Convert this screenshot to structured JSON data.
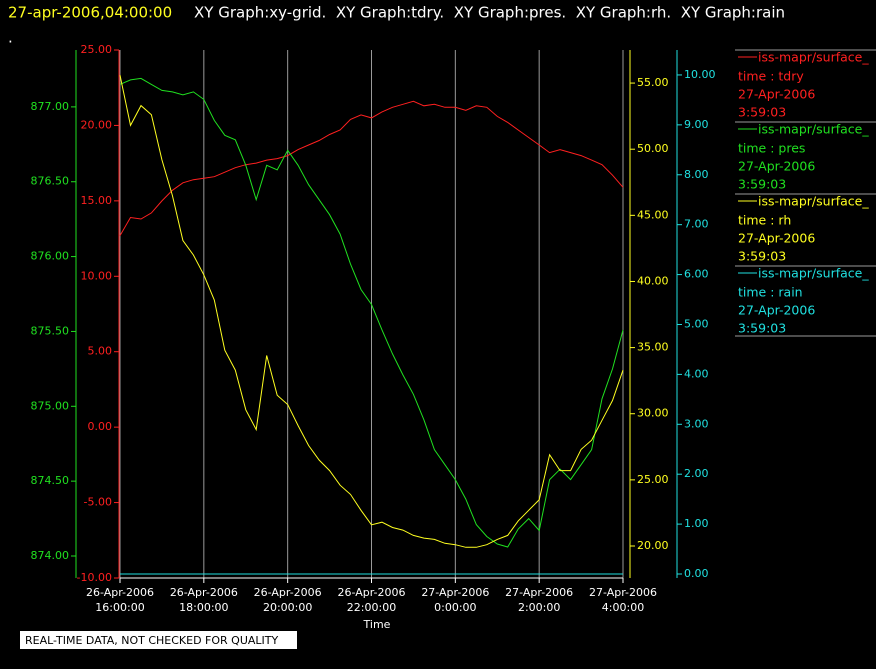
{
  "chart_data": {
    "type": "line",
    "title": "27-apr-2006,04:00:00",
    "subtitle": "XY Graph:xy-grid.  XY Graph:tdry.  XY Graph:pres.  XY Graph:rh.  XY Graph:rain",
    "marker": ".",
    "x_label": "Time",
    "footer": "REAL-TIME DATA, NOT CHECKED FOR QUALITY",
    "grid": true,
    "xlim": [
      0,
      12
    ],
    "xticks": [
      {
        "value": 0,
        "label": [
          "26-Apr-2006",
          "16:00:00"
        ]
      },
      {
        "value": 2,
        "label": [
          "26-Apr-2006",
          "18:00:00"
        ]
      },
      {
        "value": 4,
        "label": [
          "26-Apr-2006",
          "20:00:00"
        ]
      },
      {
        "value": 6,
        "label": [
          "26-Apr-2006",
          "22:00:00"
        ]
      },
      {
        "value": 8,
        "label": [
          "27-Apr-2006",
          "0:00:00"
        ]
      },
      {
        "value": 10,
        "label": [
          "27-Apr-2006",
          "2:00:00"
        ]
      },
      {
        "value": 12,
        "label": [
          "27-Apr-2006",
          "4:00:00"
        ]
      }
    ],
    "y_axes": [
      {
        "color": "#ff2020",
        "lim": [
          -10,
          25
        ],
        "ticks": [
          {
            "value": -10,
            "label": "-10.00"
          },
          {
            "value": -5,
            "label": "-5.00"
          },
          {
            "value": 0,
            "label": "0.00"
          },
          {
            "value": 5,
            "label": "5.00"
          },
          {
            "value": 10,
            "label": "10.00"
          },
          {
            "value": 15,
            "label": "15.00"
          },
          {
            "value": 20,
            "label": "20.00"
          },
          {
            "value": 25,
            "label": "25.00"
          }
        ]
      },
      {
        "color": "#20e020",
        "lim": [
          873.853,
          877.38
        ],
        "ticks": [
          {
            "value": 874,
            "label": "874.00"
          },
          {
            "value": 874.5,
            "label": "874.50"
          },
          {
            "value": 875,
            "label": "875.00"
          },
          {
            "value": 875.5,
            "label": "875.50"
          },
          {
            "value": 876,
            "label": "876.00"
          },
          {
            "value": 876.5,
            "label": "876.50"
          },
          {
            "value": 877,
            "label": "877.00"
          }
        ]
      },
      {
        "color": "#ffff20",
        "lim": [
          17.58,
          57.5
        ],
        "ticks": [
          {
            "value": 20,
            "label": "20.00"
          },
          {
            "value": 25,
            "label": "25.00"
          },
          {
            "value": 30,
            "label": "30.00"
          },
          {
            "value": 35,
            "label": "35.00"
          },
          {
            "value": 40,
            "label": "40.00"
          },
          {
            "value": 45,
            "label": "45.00"
          },
          {
            "value": 50,
            "label": "50.00"
          },
          {
            "value": 55,
            "label": "55.00"
          }
        ]
      },
      {
        "color": "#20e0e0",
        "lim": [
          -0.08,
          10.5
        ],
        "ticks": [
          {
            "value": 0,
            "label": "0.00"
          },
          {
            "value": 1,
            "label": "1.00"
          },
          {
            "value": 2,
            "label": "2.00"
          },
          {
            "value": 3,
            "label": "3.00"
          },
          {
            "value": 4,
            "label": "4.00"
          },
          {
            "value": 5,
            "label": "5.00"
          },
          {
            "value": 6,
            "label": "6.00"
          },
          {
            "value": 7,
            "label": "7.00"
          },
          {
            "value": 8,
            "label": "8.00"
          },
          {
            "value": 9,
            "label": "9.00"
          },
          {
            "value": 10,
            "label": "10.00"
          }
        ]
      }
    ],
    "x": [
      0,
      0.25,
      0.5,
      0.75,
      1,
      1.25,
      1.5,
      1.75,
      2,
      2.25,
      2.5,
      2.75,
      3,
      3.25,
      3.5,
      3.75,
      4,
      4.25,
      4.5,
      4.75,
      5,
      5.25,
      5.5,
      5.75,
      6,
      6.25,
      6.5,
      6.75,
      7,
      7.25,
      7.5,
      7.75,
      8,
      8.25,
      8.5,
      8.75,
      9,
      9.25,
      9.5,
      9.75,
      10,
      10.25,
      10.5,
      10.75,
      11,
      11.25,
      11.5,
      11.75,
      12
    ],
    "series": [
      {
        "name": "iss-mapr/surface_",
        "label": "time : tdry",
        "date": "27-Apr-2006",
        "time": "3:59:03",
        "color": "#ff2020",
        "axis": 0,
        "values": [
          12.7,
          13.9,
          13.8,
          14.2,
          15.0,
          15.7,
          16.2,
          16.4,
          16.5,
          16.6,
          16.9,
          17.2,
          17.4,
          17.5,
          17.7,
          17.8,
          18.0,
          18.4,
          18.7,
          19.0,
          19.4,
          19.7,
          20.4,
          20.7,
          20.5,
          20.9,
          21.2,
          21.4,
          21.6,
          21.3,
          21.4,
          21.2,
          21.2,
          21.0,
          21.3,
          21.2,
          20.6,
          20.2,
          19.7,
          19.2,
          18.7,
          18.2,
          18.4,
          18.2,
          18.0,
          17.7,
          17.4,
          16.7,
          15.9
        ]
      },
      {
        "name": "iss-mapr/surface_",
        "label": "time : pres",
        "date": "27-Apr-2006",
        "time": "3:59:03",
        "color": "#20e020",
        "axis": 1,
        "values": [
          877.15,
          877.18,
          877.19,
          877.15,
          877.11,
          877.1,
          877.08,
          877.1,
          877.05,
          876.91,
          876.81,
          876.78,
          876.61,
          876.38,
          876.61,
          876.58,
          876.71,
          876.61,
          876.48,
          876.38,
          876.28,
          876.15,
          875.95,
          875.78,
          875.68,
          875.51,
          875.35,
          875.21,
          875.08,
          874.91,
          874.71,
          874.61,
          874.51,
          874.38,
          874.21,
          874.13,
          874.08,
          874.06,
          874.18,
          874.25,
          874.17,
          874.51,
          874.58,
          874.51,
          874.61,
          874.71,
          875.05,
          875.25,
          875.51
        ]
      },
      {
        "name": "iss-mapr/surface_",
        "label": "time : rh",
        "date": "27-Apr-2006",
        "time": "3:59:03",
        "color": "#ffff20",
        "axis": 2,
        "values": [
          55.6,
          51.8,
          53.3,
          52.6,
          49.2,
          46.5,
          43.1,
          42.0,
          40.5,
          38.6,
          34.8,
          33.3,
          30.3,
          28.8,
          34.4,
          31.4,
          30.7,
          29.1,
          27.6,
          26.5,
          25.7,
          24.6,
          23.9,
          22.7,
          21.6,
          21.8,
          21.4,
          21.2,
          20.8,
          20.6,
          20.5,
          20.2,
          20.1,
          19.9,
          19.9,
          20.1,
          20.5,
          20.8,
          21.9,
          22.7,
          23.5,
          26.9,
          25.7,
          25.7,
          27.3,
          28.0,
          29.5,
          31.0,
          33.3
        ]
      },
      {
        "name": "iss-mapr/surface_",
        "label": "time : rain",
        "date": "27-Apr-2006",
        "time": "3:59:03",
        "color": "#20e0e0",
        "axis": 3,
        "values": [
          0,
          0,
          0,
          0,
          0,
          0,
          0,
          0,
          0,
          0,
          0,
          0,
          0,
          0,
          0,
          0,
          0,
          0,
          0,
          0,
          0,
          0,
          0,
          0,
          0,
          0,
          0,
          0,
          0,
          0,
          0,
          0,
          0,
          0,
          0,
          0,
          0,
          0,
          0,
          0,
          0,
          0,
          0,
          0,
          0,
          0,
          0,
          0,
          0
        ]
      }
    ]
  }
}
